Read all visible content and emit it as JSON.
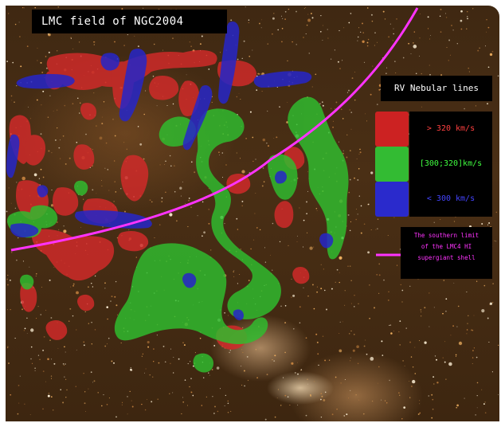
{
  "title": "LMC field of NGC2004",
  "legend": {
    "heading": "RV Nebular lines",
    "items": [
      {
        "label": "> 320 km/s",
        "color": "#cc2222",
        "text_color": "#ff4040"
      },
      {
        "label": "[300;320]km/s",
        "color": "#33bb33",
        "text_color": "#40ff40"
      },
      {
        "label": "< 300 km/s",
        "color": "#2a2acc",
        "text_color": "#4444ff"
      }
    ]
  },
  "shell_limit": {
    "lines": [
      "The southern limit",
      "of the LMC4 HI",
      "supergiant shell"
    ],
    "color": "#ff33ff"
  },
  "region_colors": {
    "red": "#d42a2a",
    "green": "#2fbf2f",
    "blue": "#2626c8"
  }
}
